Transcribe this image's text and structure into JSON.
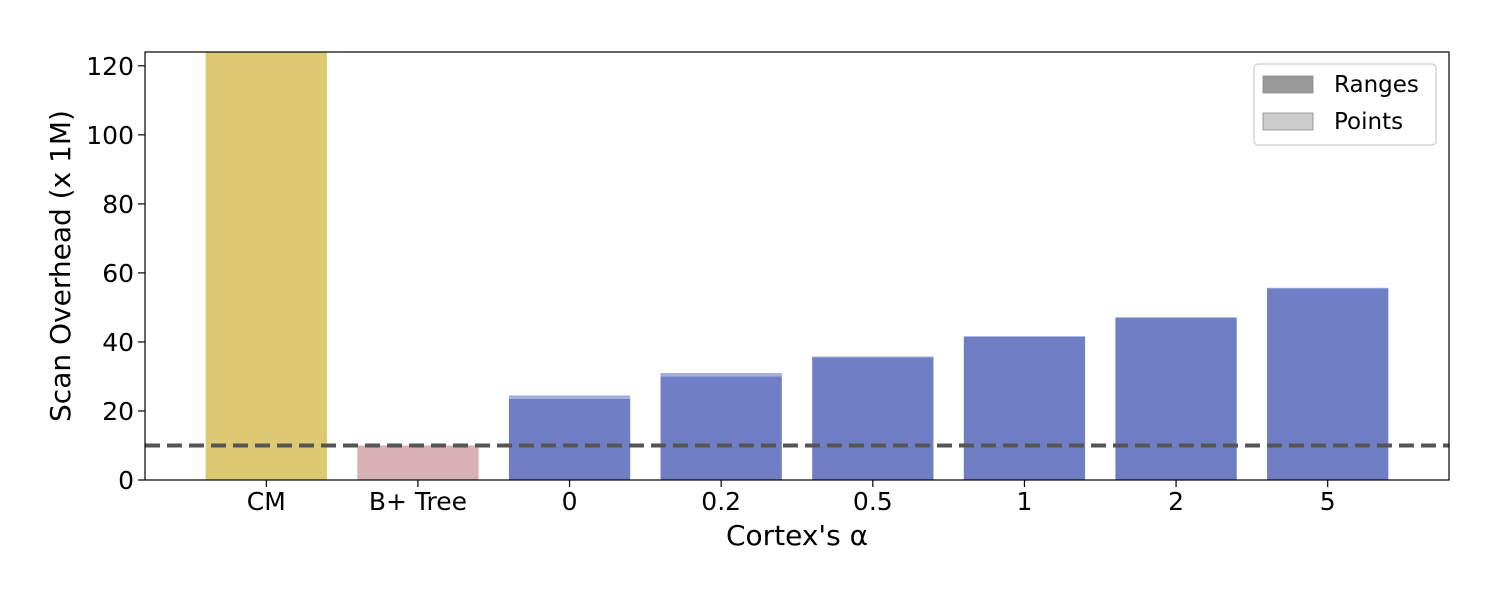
{
  "chart_data": {
    "type": "bar",
    "categories": [
      "CM",
      "B+ Tree",
      "0",
      "0.2",
      "0.5",
      "1",
      "2",
      "5"
    ],
    "series": [
      {
        "name": "Ranges",
        "values": [
          124,
          10,
          23.5,
          30,
          35.5,
          41.5,
          47,
          55.5
        ]
      },
      {
        "name": "Points",
        "values": [
          0,
          0,
          1,
          1,
          0.3,
          0.2,
          0.2,
          0.2
        ]
      }
    ],
    "bar_colors": [
      "#dfc872",
      "#d9b0b3",
      "#707fc5",
      "#707fc5",
      "#707fc5",
      "#707fc5",
      "#707fc5",
      "#707fc5"
    ],
    "points_colors": [
      "#e9d9a0",
      "#e8cdcf",
      "#a4aedd",
      "#a4aedd",
      "#a4aedd",
      "#a4aedd",
      "#a4aedd",
      "#a4aedd"
    ],
    "reference_line": {
      "y": 10,
      "color": "#555555",
      "style": "dashed"
    },
    "xlabel": "Cortex's α",
    "ylabel": "Scan Overhead (x 1M)",
    "ylim": [
      0,
      124
    ],
    "yticks": [
      0,
      20,
      40,
      60,
      80,
      100,
      120
    ],
    "legend": {
      "position": "top-right",
      "items": [
        {
          "label": "Ranges",
          "color": "#999999"
        },
        {
          "label": "Points",
          "color": "#cccccc"
        }
      ]
    },
    "grid": false
  }
}
